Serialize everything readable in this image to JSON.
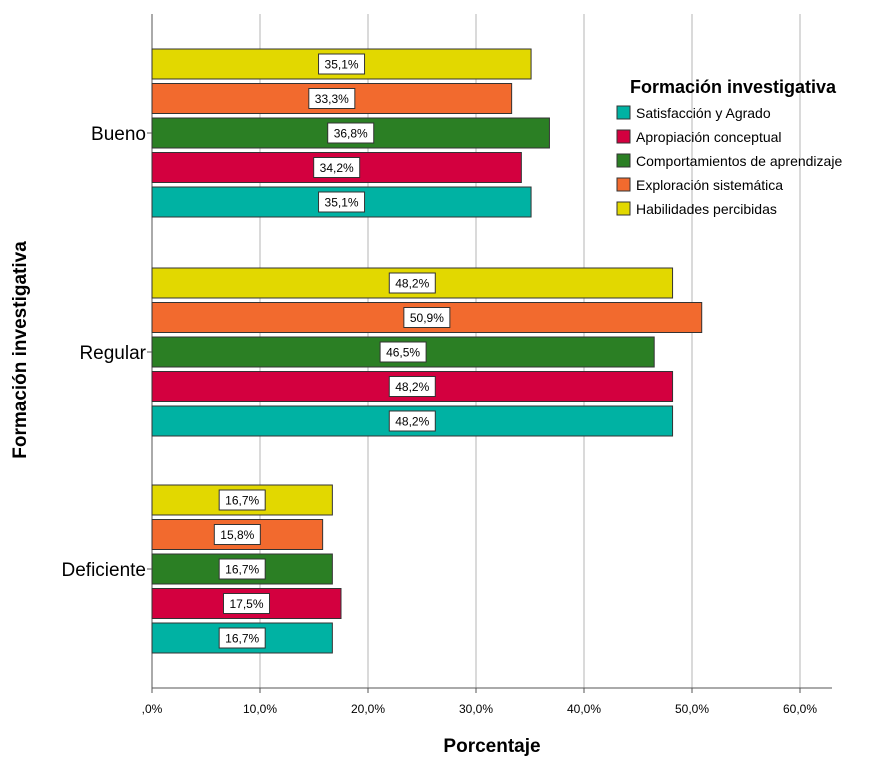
{
  "chart_data": {
    "type": "bar",
    "orientation": "horizontal",
    "xlabel": "Porcentaje",
    "ylabel": "Formación investigativa",
    "xlim": [
      0,
      63
    ],
    "xticks": [
      0,
      10,
      20,
      30,
      40,
      50,
      60
    ],
    "xtick_labels": [
      ",0%",
      "10,0%",
      "20,0%",
      "30,0%",
      "40,0%",
      "50,0%",
      "60,0%"
    ],
    "grid": true,
    "legend_position": "top-right",
    "legend_title": "Formación investigativa",
    "categories": [
      "Bueno",
      "Regular",
      "Deficiente"
    ],
    "series": [
      {
        "name": "Satisfacción y Agrado",
        "color": "#00b2a3",
        "values": [
          35.1,
          48.2,
          16.7
        ],
        "labels": [
          "35,1%",
          "48,2%",
          "16,7%"
        ]
      },
      {
        "name": "Apropiación conceptual",
        "color": "#d3003f",
        "values": [
          34.2,
          48.2,
          17.5
        ],
        "labels": [
          "34,2%",
          "48,2%",
          "17,5%"
        ]
      },
      {
        "name": "Comportamientos de aprendizaje",
        "color": "#2b7f24",
        "values": [
          36.8,
          46.5,
          16.7
        ],
        "labels": [
          "36,8%",
          "46,5%",
          "16,7%"
        ]
      },
      {
        "name": "Exploración sistemática",
        "color": "#f26a2e",
        "values": [
          33.3,
          50.9,
          15.8
        ],
        "labels": [
          "33,3%",
          "50,9%",
          "15,8%"
        ]
      },
      {
        "name": "Habilidades percibidas",
        "color": "#e2d800",
        "values": [
          35.1,
          48.2,
          16.7
        ],
        "labels": [
          "35,1%",
          "48,2%",
          "16,7%"
        ]
      }
    ]
  }
}
